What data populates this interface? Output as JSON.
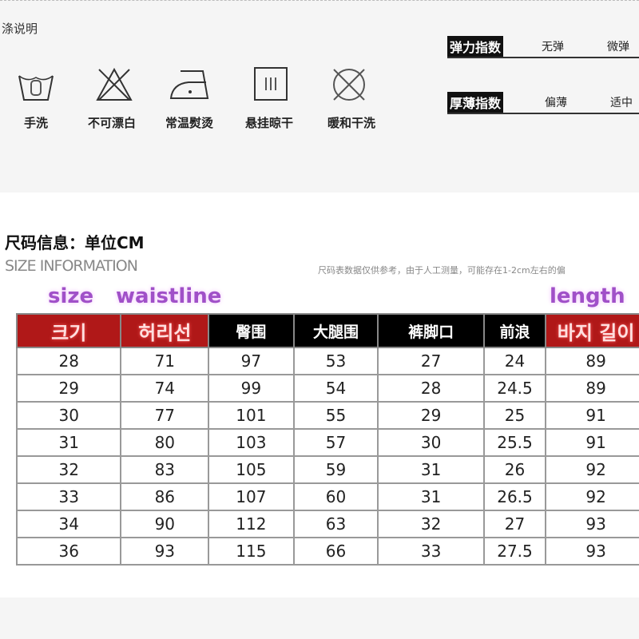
{
  "care": {
    "title": "涤说明",
    "items": [
      {
        "icon": "hand-wash-icon",
        "label": "手洗"
      },
      {
        "icon": "no-bleach-icon",
        "label": "不可漂白"
      },
      {
        "icon": "iron-icon",
        "label": "常温熨烫"
      },
      {
        "icon": "hang-dry-icon",
        "label": "悬挂晾干"
      },
      {
        "icon": "no-dry-clean-icon",
        "label": "暖和干洗"
      }
    ]
  },
  "indices": [
    {
      "label": "弹力指数",
      "values": [
        "无弹",
        "微弹"
      ]
    },
    {
      "label": "厚薄指数",
      "values": [
        "偏薄",
        "适中"
      ]
    }
  ],
  "size_info": {
    "title": "尺码信息：单位CM",
    "subtitle": "SIZE INFORMATION",
    "note": "尺码表数据仅供参考，由于人工测量，可能存在1-2cm左右的偏",
    "overlay_labels": {
      "size": "size",
      "waist": "waistline",
      "length": "length"
    },
    "headers": [
      "크기",
      "허리선",
      "臀围",
      "大腿围",
      "裤脚口",
      "前浪",
      "바지 길이"
    ],
    "rows": [
      [
        "28",
        "71",
        "97",
        "53",
        "27",
        "24",
        "89"
      ],
      [
        "29",
        "74",
        "99",
        "54",
        "28",
        "24.5",
        "89"
      ],
      [
        "30",
        "77",
        "101",
        "55",
        "29",
        "25",
        "91"
      ],
      [
        "31",
        "80",
        "103",
        "57",
        "30",
        "25.5",
        "91"
      ],
      [
        "32",
        "83",
        "105",
        "59",
        "31",
        "26",
        "92"
      ],
      [
        "33",
        "86",
        "107",
        "60",
        "31",
        "26.5",
        "92"
      ],
      [
        "34",
        "90",
        "112",
        "63",
        "32",
        "27",
        "93"
      ],
      [
        "36",
        "93",
        "115",
        "66",
        "33",
        "27.5",
        "93"
      ]
    ]
  }
}
